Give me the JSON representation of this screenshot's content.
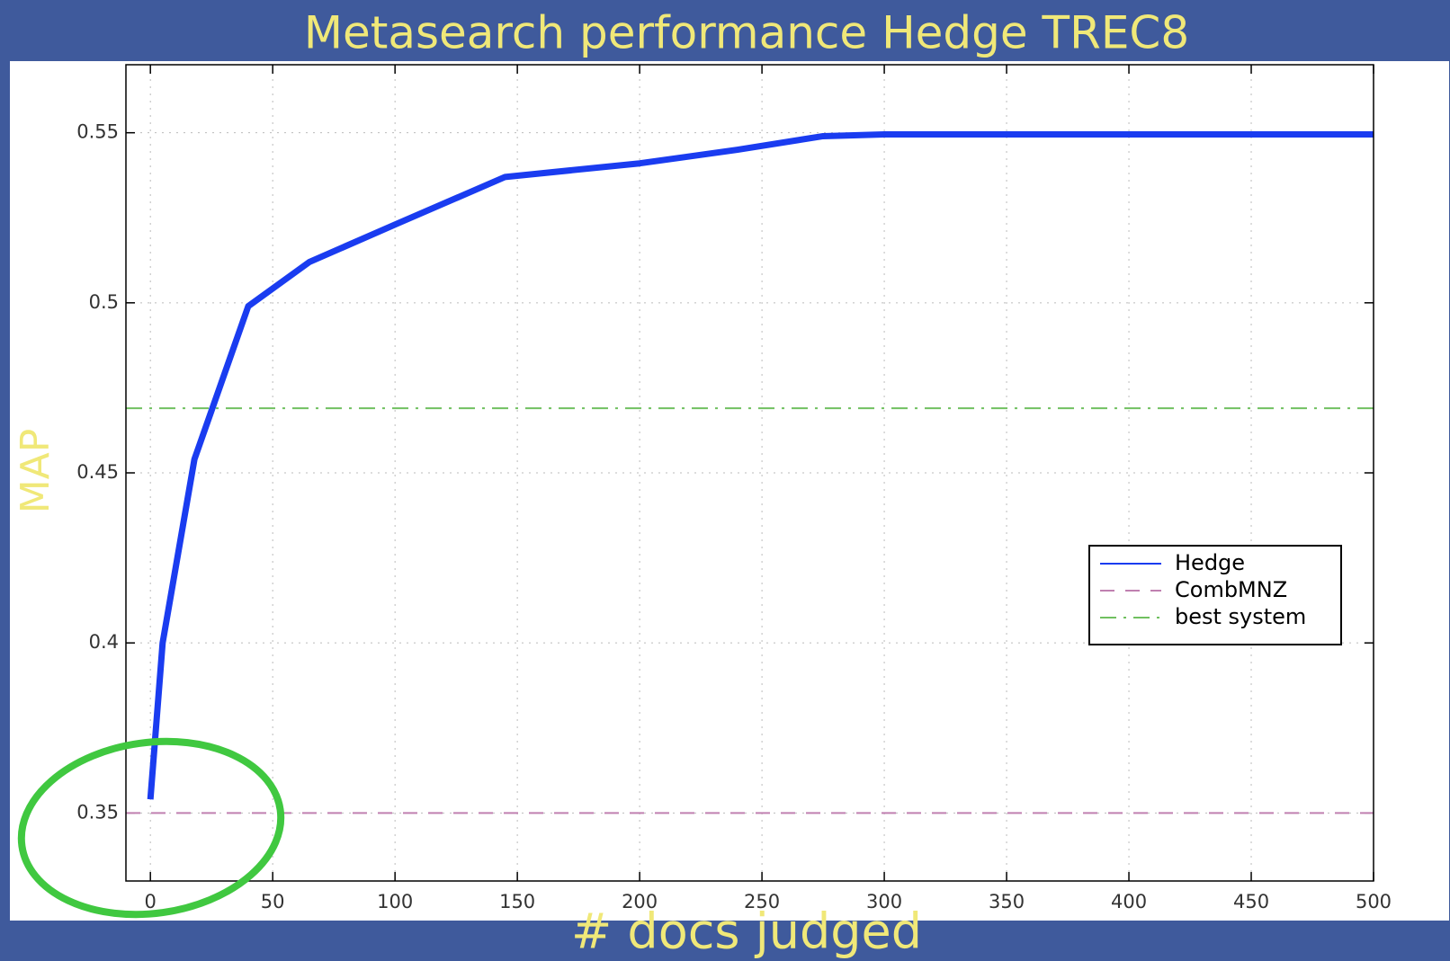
{
  "chart_data": {
    "type": "line",
    "title": "Metasearch performance   Hedge   TREC8",
    "xlabel": "# docs judged",
    "ylabel": "MAP",
    "xlim": [
      -10,
      500
    ],
    "ylim": [
      0.33,
      0.57
    ],
    "xticks": [
      0,
      50,
      100,
      150,
      200,
      250,
      300,
      350,
      400,
      450,
      500
    ],
    "yticks": [
      0.35,
      0.4,
      0.45,
      0.5,
      0.55
    ],
    "grid": true,
    "legend": "right",
    "series": [
      {
        "name": "Hedge",
        "color": "#1a3cf0",
        "style": "solid",
        "x": [
          0,
          5,
          18,
          40,
          65,
          100,
          145,
          200,
          240,
          275,
          300,
          500
        ],
        "values": [
          0.354,
          0.4,
          0.454,
          0.499,
          0.512,
          0.523,
          0.537,
          0.541,
          0.545,
          0.549,
          0.5495,
          0.5495
        ]
      },
      {
        "name": "CombMNZ",
        "color": "#c080b0",
        "style": "dash",
        "x": [
          -10,
          500
        ],
        "values": [
          0.35,
          0.35
        ]
      },
      {
        "name": "best system",
        "color": "#70c060",
        "style": "dashdot",
        "x": [
          -10,
          500
        ],
        "values": [
          0.469,
          0.469
        ]
      }
    ]
  }
}
